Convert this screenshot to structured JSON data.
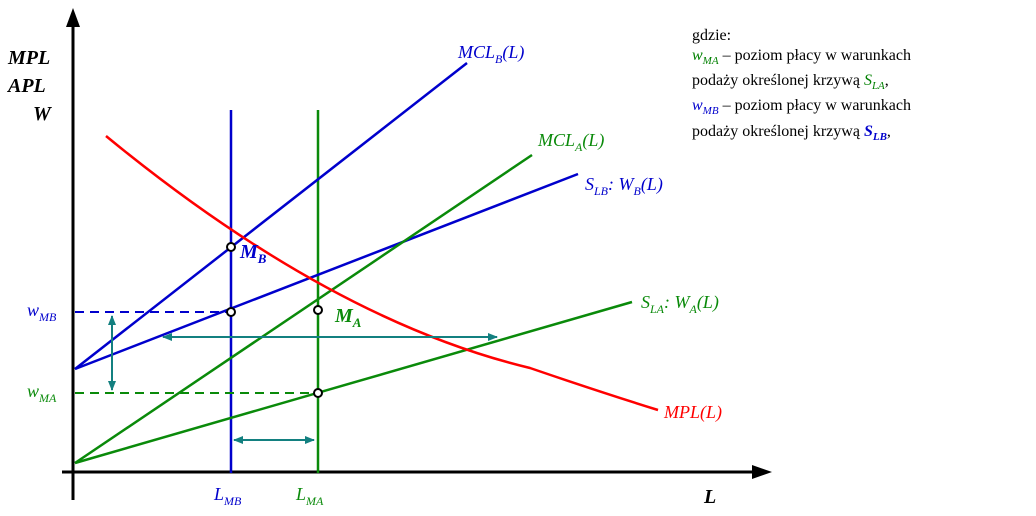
{
  "colors": {
    "blue": "#0000cc",
    "green": "#0a8a0a",
    "red": "#ff0000",
    "teal": "#138080",
    "black": "#000000"
  },
  "axes": {
    "y_label_lines": [
      "MPL",
      "APL",
      "W"
    ],
    "x_label": "L"
  },
  "curves": {
    "mcl_b": {
      "main": "MCL",
      "sub": "B",
      "tail": "(L)"
    },
    "mcl_a": {
      "main": "MCL",
      "sub": "A",
      "tail": "(L)"
    },
    "s_lb": {
      "main": "S",
      "sub": "LB",
      "tail": ": W",
      "sub2": "B",
      "tail2": "(L)"
    },
    "s_la": {
      "main": "S",
      "sub": "LA",
      "tail": ": W",
      "sub2": "A",
      "tail2": "(L)"
    },
    "mpl": {
      "main": "MPL(L)"
    }
  },
  "points": {
    "m_b": {
      "main": "M",
      "sub": "B"
    },
    "m_a": {
      "main": "M",
      "sub": "A"
    }
  },
  "ticks": {
    "w_mb": {
      "main": "w",
      "sub": "MB"
    },
    "w_ma": {
      "main": "w",
      "sub": "MA"
    },
    "l_mb": {
      "main": "L",
      "sub": "MB"
    },
    "l_ma": {
      "main": "L",
      "sub": "MA"
    }
  },
  "legend": {
    "title": "gdzie:",
    "line1": {
      "var": "w",
      "sub": "MA",
      "text": " – poziom płacy w warunkach"
    },
    "line2": {
      "text": "podaży określonej krzywą ",
      "var": "S",
      "sub": "LA",
      "end": ","
    },
    "line3": {
      "var": "w",
      "sub": "MB",
      "text": " – poziom płacy w warunkach"
    },
    "line4": {
      "text": "podaży określonej krzywą ",
      "var": "S",
      "sub": "LB",
      "end": ","
    }
  }
}
